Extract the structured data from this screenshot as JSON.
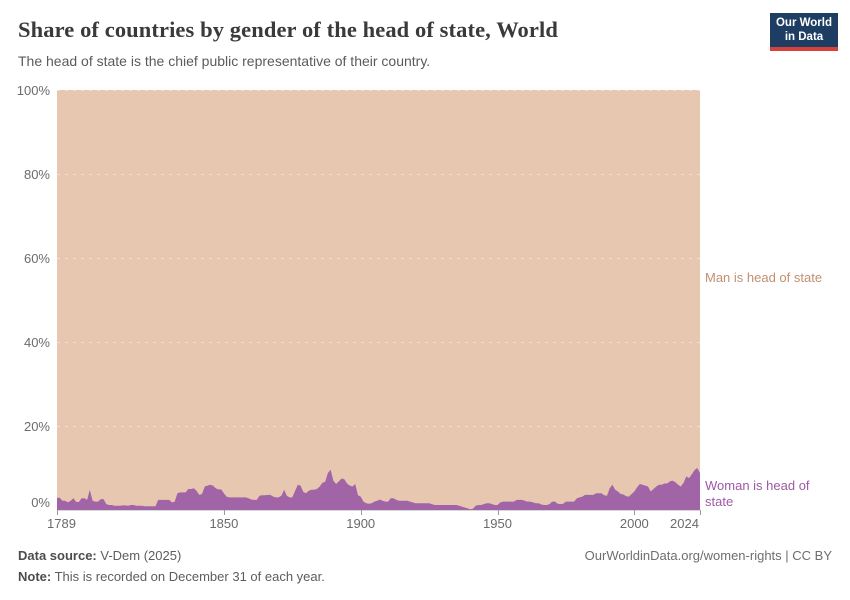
{
  "header": {
    "title": "Share of countries by gender of the head of state, World",
    "subtitle": "The head of state is the chief public representative of their country.",
    "logo": {
      "line1": "Our World",
      "line2": "in Data",
      "bg_color": "#1d3d63",
      "bar_color": "#d7413a"
    }
  },
  "chart_data": {
    "type": "area",
    "stacking": "percent_stacked_100",
    "title": "Share of countries by gender of the head of state, World",
    "x_range": [
      1789,
      2024
    ],
    "y_range_pct": [
      0,
      100
    ],
    "x_tick_years": [
      1789,
      1850,
      1900,
      1950,
      2000,
      2024
    ],
    "y_tick_labels": [
      "0%",
      "20%",
      "40%",
      "60%",
      "80%",
      "100%"
    ],
    "grid": "dashed horizontal at 20% steps",
    "legend_position": "right edge direct labels",
    "series": [
      {
        "name": "Woman is head of state",
        "color": "#a165a7",
        "label_color": "#9d59a4",
        "years_start": 1789,
        "values_pct": [
          2.9,
          2.9,
          2.2,
          2.2,
          1.8,
          2.2,
          2.8,
          1.9,
          1.9,
          2.8,
          2.8,
          2.4,
          4.8,
          2.2,
          2.0,
          2.0,
          2.6,
          2.6,
          1.4,
          1.2,
          1.2,
          1.0,
          1.0,
          1.0,
          1.1,
          1.1,
          1.0,
          1.2,
          1.2,
          1.0,
          1.0,
          1.0,
          0.9,
          0.9,
          0.9,
          0.9,
          0.9,
          2.4,
          2.4,
          2.4,
          2.4,
          2.4,
          1.8,
          2.0,
          4.0,
          4.2,
          4.2,
          4.2,
          5.0,
          5.0,
          5.2,
          4.6,
          3.6,
          3.8,
          5.6,
          5.8,
          6.0,
          5.8,
          5.2,
          4.9,
          4.9,
          4.0,
          3.2,
          3.0,
          3.0,
          3.0,
          3.0,
          3.0,
          3.0,
          3.0,
          2.8,
          2.5,
          2.4,
          2.4,
          3.4,
          3.5,
          3.5,
          3.6,
          3.6,
          3.2,
          3.0,
          3.0,
          3.4,
          4.8,
          3.4,
          3.0,
          3.0,
          4.5,
          6.0,
          5.8,
          4.3,
          4.0,
          4.6,
          4.8,
          4.8,
          5.0,
          5.6,
          6.5,
          6.7,
          8.8,
          9.6,
          7.0,
          6.2,
          6.8,
          7.5,
          7.3,
          6.3,
          5.8,
          5.6,
          6.2,
          3.5,
          3.2,
          2.0,
          1.6,
          1.5,
          1.6,
          2.0,
          2.2,
          2.5,
          2.2,
          2.0,
          2.0,
          2.8,
          2.8,
          2.4,
          2.2,
          2.2,
          2.2,
          2.2,
          2.0,
          1.8,
          1.6,
          1.6,
          1.6,
          1.6,
          1.6,
          1.6,
          1.4,
          1.2,
          1.2,
          1.2,
          1.2,
          1.2,
          1.2,
          1.2,
          1.2,
          1.2,
          1.0,
          0.8,
          0.6,
          0.4,
          0.2,
          0.3,
          1.0,
          1.2,
          1.2,
          1.4,
          1.6,
          1.6,
          1.4,
          1.2,
          1.2,
          1.8,
          2.0,
          2.0,
          2.0,
          2.0,
          2.0,
          2.4,
          2.4,
          2.4,
          2.2,
          2.0,
          2.0,
          1.8,
          1.6,
          1.6,
          1.3,
          1.2,
          1.2,
          1.4,
          2.0,
          2.0,
          1.5,
          1.4,
          1.5,
          2.0,
          2.0,
          2.0,
          2.0,
          2.8,
          3.0,
          3.2,
          3.6,
          3.6,
          3.6,
          3.6,
          4.0,
          4.0,
          4.0,
          3.5,
          3.4,
          5.2,
          6.0,
          4.8,
          4.4,
          3.8,
          3.7,
          3.3,
          3.2,
          3.8,
          4.4,
          5.4,
          6.2,
          6.0,
          5.8,
          5.6,
          4.4,
          5.0,
          5.6,
          6.0,
          6.0,
          6.3,
          6.3,
          6.8,
          7.0,
          6.6,
          6.0,
          5.6,
          6.5,
          8.0,
          7.6,
          8.5,
          9.5,
          10.0,
          8.8
        ]
      },
      {
        "name": "Man is head of state",
        "color": "#e7c7b0",
        "label_color": "#c0906f",
        "derived": "remainder_to_100_percent"
      }
    ]
  },
  "footer": {
    "data_source_label": "Data source:",
    "data_source_value": " V-Dem (2025)",
    "note_label": "Note:",
    "note_value": " This is recorded on December 31 of each year.",
    "link_text": "OurWorldinData.org/women-rights | CC BY"
  }
}
